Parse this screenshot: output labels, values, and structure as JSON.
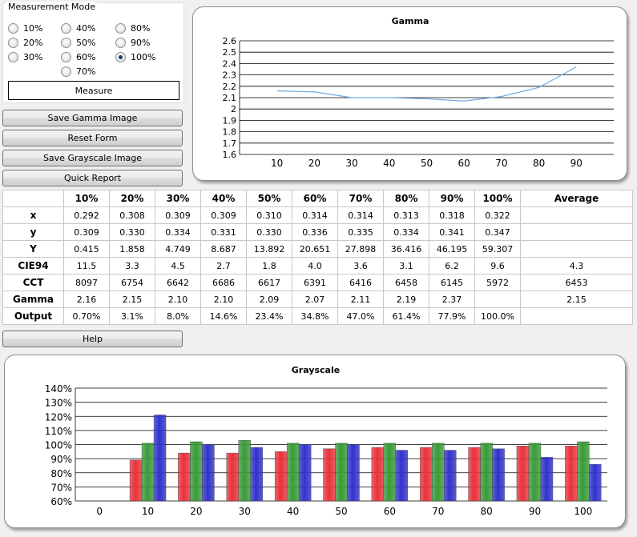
{
  "measurement_mode": {
    "title": "Measurement Mode",
    "options": [
      "10%",
      "20%",
      "30%",
      "40%",
      "50%",
      "60%",
      "70%",
      "80%",
      "90%",
      "100%"
    ],
    "selected": "100%",
    "measure_label": "Measure"
  },
  "buttons": {
    "save_gamma": "Save Gamma Image",
    "reset_form": "Reset Form",
    "save_grayscale": "Save Grayscale Image",
    "quick_report": "Quick Report",
    "help": "Help"
  },
  "table": {
    "columns": [
      "10%",
      "20%",
      "30%",
      "40%",
      "50%",
      "60%",
      "70%",
      "80%",
      "90%",
      "100%",
      "Average"
    ],
    "rows": [
      {
        "label": "x",
        "values": [
          "0.292",
          "0.308",
          "0.309",
          "0.309",
          "0.310",
          "0.314",
          "0.314",
          "0.313",
          "0.318",
          "0.322",
          ""
        ]
      },
      {
        "label": "y",
        "values": [
          "0.309",
          "0.330",
          "0.334",
          "0.331",
          "0.330",
          "0.336",
          "0.335",
          "0.334",
          "0.341",
          "0.347",
          ""
        ]
      },
      {
        "label": "Y",
        "values": [
          "0.415",
          "1.858",
          "4.749",
          "8.687",
          "13.892",
          "20.651",
          "27.898",
          "36.416",
          "46.195",
          "59.307",
          ""
        ]
      },
      {
        "label": "CIE94",
        "values": [
          "11.5",
          "3.3",
          "4.5",
          "2.7",
          "1.8",
          "4.0",
          "3.6",
          "3.1",
          "6.2",
          "9.6",
          "4.3"
        ]
      },
      {
        "label": "CCT",
        "values": [
          "8097",
          "6754",
          "6642",
          "6686",
          "6617",
          "6391",
          "6416",
          "6458",
          "6145",
          "5972",
          "6453"
        ]
      },
      {
        "label": "Gamma",
        "values": [
          "2.16",
          "2.15",
          "2.10",
          "2.10",
          "2.09",
          "2.07",
          "2.11",
          "2.19",
          "2.37",
          "",
          "2.15"
        ]
      },
      {
        "label": "Output",
        "values": [
          "0.70%",
          "3.1%",
          "8.0%",
          "14.6%",
          "23.4%",
          "34.8%",
          "47.0%",
          "61.4%",
          "77.9%",
          "100.0%",
          ""
        ]
      }
    ]
  },
  "chart_data": [
    {
      "type": "line",
      "title": "Gamma",
      "x": [
        10,
        20,
        30,
        40,
        50,
        60,
        70,
        80,
        90
      ],
      "series": [
        {
          "values": [
            2.16,
            2.15,
            2.1,
            2.1,
            2.09,
            2.07,
            2.11,
            2.19,
            2.37
          ],
          "color": "#6fa8dc"
        }
      ],
      "x_ticks": [
        "10",
        "20",
        "30",
        "40",
        "50",
        "60",
        "70",
        "80",
        "90"
      ],
      "y_ticks": [
        "1.6",
        "1.7",
        "1.8",
        "1.9",
        "2",
        "2.1",
        "2.2",
        "2.3",
        "2.4",
        "2.5",
        "2.6"
      ],
      "ylim": [
        1.6,
        2.6
      ],
      "xlim": [
        0,
        100
      ],
      "grid": "horizontal"
    },
    {
      "type": "bar",
      "title": "Grayscale",
      "categories": [
        "0",
        "10",
        "20",
        "30",
        "40",
        "50",
        "60",
        "70",
        "80",
        "90",
        "100"
      ],
      "series": [
        {
          "color": "#e8323c",
          "values": [
            null,
            89,
            94,
            94,
            95,
            97,
            98,
            98,
            98,
            99,
            99
          ]
        },
        {
          "color": "#3a9a3a",
          "values": [
            null,
            101,
            102,
            103,
            101,
            101,
            101,
            101,
            101,
            101,
            102
          ]
        },
        {
          "color": "#3232cc",
          "values": [
            null,
            121,
            100,
            98,
            100,
            100,
            96,
            96,
            97,
            91,
            86
          ]
        }
      ],
      "y_ticks": [
        "60%",
        "70%",
        "80%",
        "90%",
        "100%",
        "110%",
        "120%",
        "130%",
        "140%"
      ],
      "ylim": [
        60,
        140
      ],
      "grid": "horizontal"
    }
  ]
}
